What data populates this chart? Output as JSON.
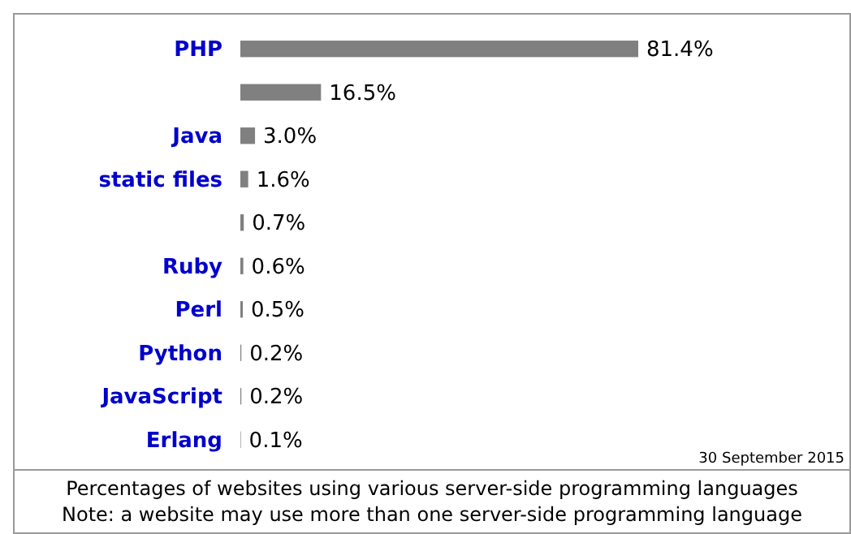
{
  "chart_data": {
    "type": "bar",
    "orientation": "horizontal",
    "categories": [
      "PHP",
      null,
      "Java",
      "static files",
      null,
      "Ruby",
      "Perl",
      "Python",
      "JavaScript",
      "Erlang"
    ],
    "values": [
      81.4,
      16.5,
      3.0,
      1.6,
      0.7,
      0.6,
      0.5,
      0.2,
      0.2,
      0.1
    ],
    "value_labels": [
      "81.4%",
      "16.5%",
      "3.0%",
      "1.6%",
      "0.7%",
      "0.6%",
      "0.5%",
      "0.2%",
      "0.2%",
      "0.1%"
    ],
    "color": "#808080",
    "annotations": [
      "30 September 2015",
      "Percentages of websites using various server-side programming languages",
      "Note: a website may use more than one server-side programming language"
    ]
  }
}
